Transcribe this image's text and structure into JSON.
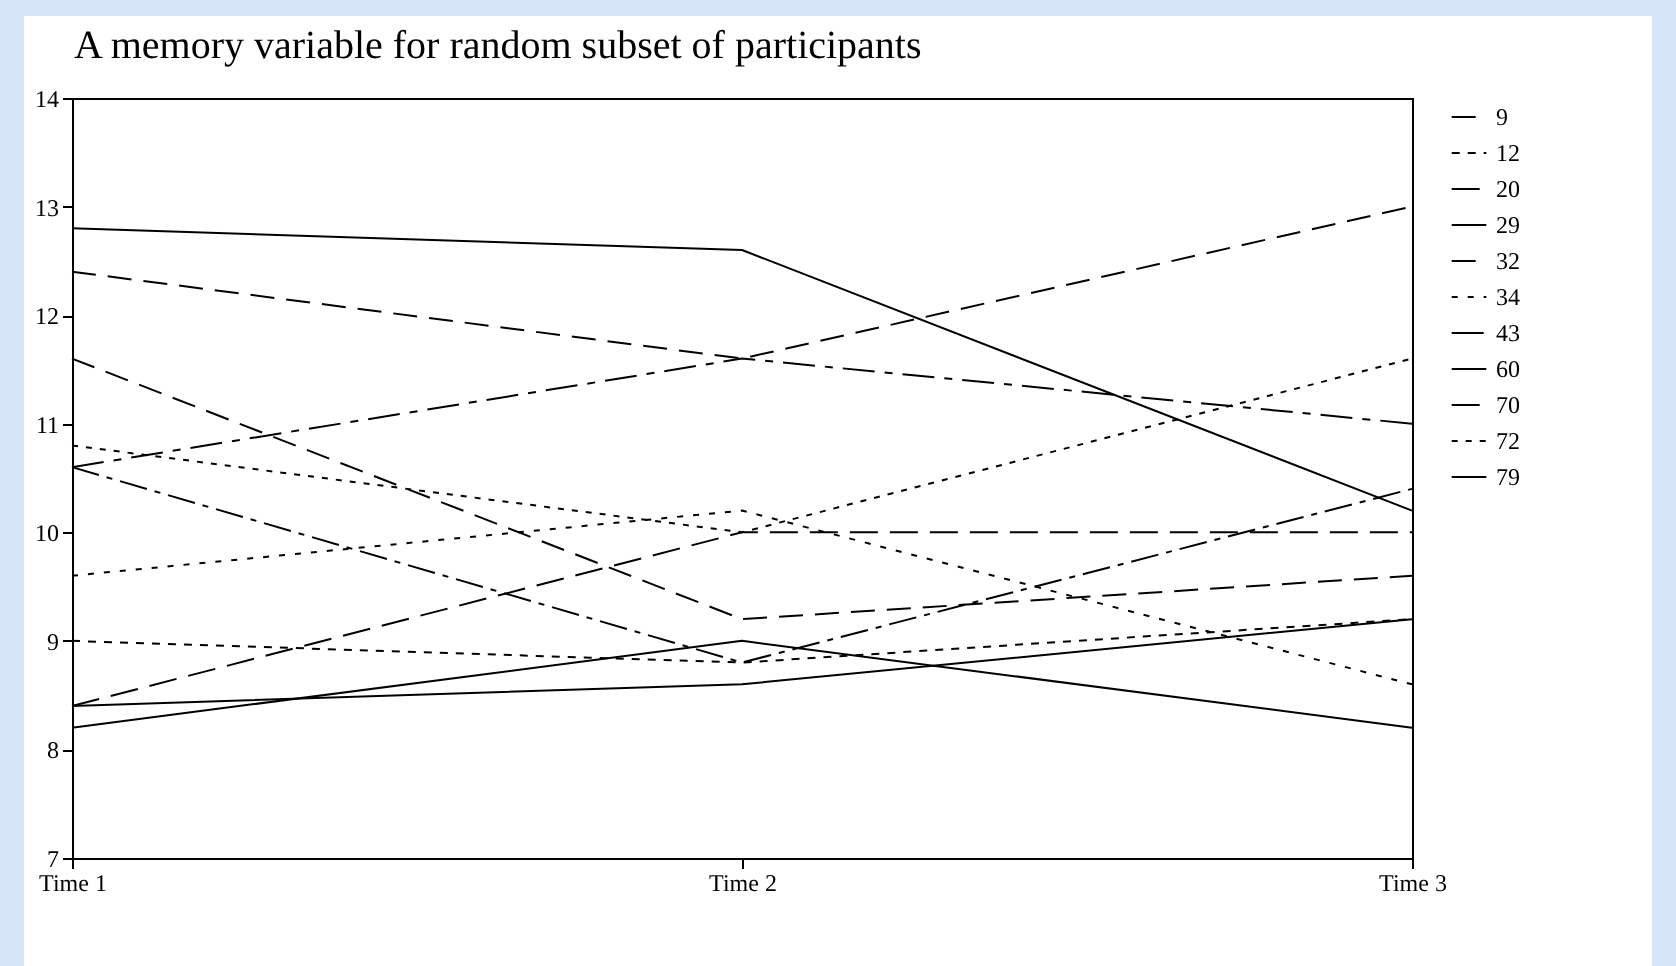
{
  "chart_data": {
    "type": "line",
    "title": "A memory variable for random subset of participants",
    "categories": [
      "Time 1",
      "Time 2",
      "Time 3"
    ],
    "series": [
      {
        "name": "9",
        "color": "#000000",
        "line_style": "long dashed",
        "values": [
          11.6,
          9.2,
          9.6
        ]
      },
      {
        "name": "12",
        "color": "#000000",
        "line_style": "short dashed",
        "values": [
          9.0,
          8.8,
          9.2
        ]
      },
      {
        "name": "20",
        "color": "#000000",
        "line_style": "dash dot",
        "values": [
          10.6,
          8.8,
          10.4
        ]
      },
      {
        "name": "29",
        "color": "#000000",
        "line_style": "solid",
        "values": [
          12.8,
          12.6,
          10.2
        ]
      },
      {
        "name": "32",
        "color": "#000000",
        "line_style": "thick dashed",
        "values": [
          12.4,
          11.6,
          13.0
        ]
      },
      {
        "name": "34",
        "color": "#000000",
        "line_style": "dotted",
        "values": [
          9.6,
          10.2,
          8.6
        ]
      },
      {
        "name": "43",
        "color": "#000000",
        "line_style": "thick dash dot",
        "values": [
          10.6,
          11.6,
          11.0
        ]
      },
      {
        "name": "60",
        "color": "#000000",
        "line_style": "solid",
        "values": [
          8.4,
          8.6,
          9.2
        ]
      },
      {
        "name": "70",
        "color": "#000000",
        "line_style": "heavy dashed",
        "values": [
          8.4,
          10.0,
          10.0
        ]
      },
      {
        "name": "72",
        "color": "#000000",
        "line_style": "heavy dotted",
        "values": [
          10.8,
          10.0,
          11.6
        ]
      },
      {
        "name": "79",
        "color": "#000000",
        "line_style": "solid",
        "values": [
          8.2,
          9.0,
          8.2
        ]
      }
    ],
    "ylim": [
      7,
      14
    ],
    "yticks": [
      7,
      8,
      9,
      10,
      11,
      12,
      13,
      14
    ],
    "grid": false,
    "legend": "right",
    "marker": "none"
  }
}
